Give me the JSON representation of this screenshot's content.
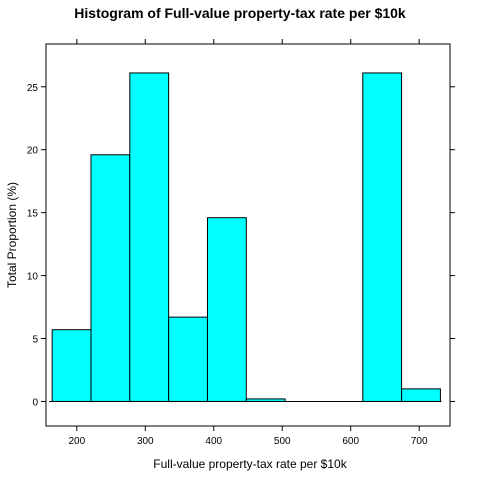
{
  "chart_data": {
    "type": "bar",
    "title": "Histogram of Full-value property-tax rate per $10k",
    "xlabel": "Full-value property-tax rate per $10k",
    "ylabel": "Total Proportion (%)",
    "xlim": [
      155,
      745
    ],
    "ylim": [
      -1.95,
      28.4
    ],
    "x_ticks": [
      200,
      300,
      400,
      500,
      600,
      700
    ],
    "y_ticks": [
      0,
      5,
      10,
      15,
      20,
      25
    ],
    "bins": [
      {
        "start": 164,
        "end": 220.7,
        "value": 5.7
      },
      {
        "start": 220.7,
        "end": 277.4,
        "value": 19.6
      },
      {
        "start": 277.4,
        "end": 334.1,
        "value": 26.1
      },
      {
        "start": 334.1,
        "end": 390.8,
        "value": 6.7
      },
      {
        "start": 390.8,
        "end": 447.5,
        "value": 14.6
      },
      {
        "start": 447.5,
        "end": 504.2,
        "value": 0.2
      },
      {
        "start": 504.2,
        "end": 560.9,
        "value": 0
      },
      {
        "start": 560.9,
        "end": 617.6,
        "value": 0
      },
      {
        "start": 617.6,
        "end": 674.3,
        "value": 26.1
      },
      {
        "start": 674.3,
        "end": 731.0,
        "value": 1.0
      }
    ],
    "bar_color": "#00FFFF",
    "bar_edge_color": "#000000",
    "grid": false
  }
}
